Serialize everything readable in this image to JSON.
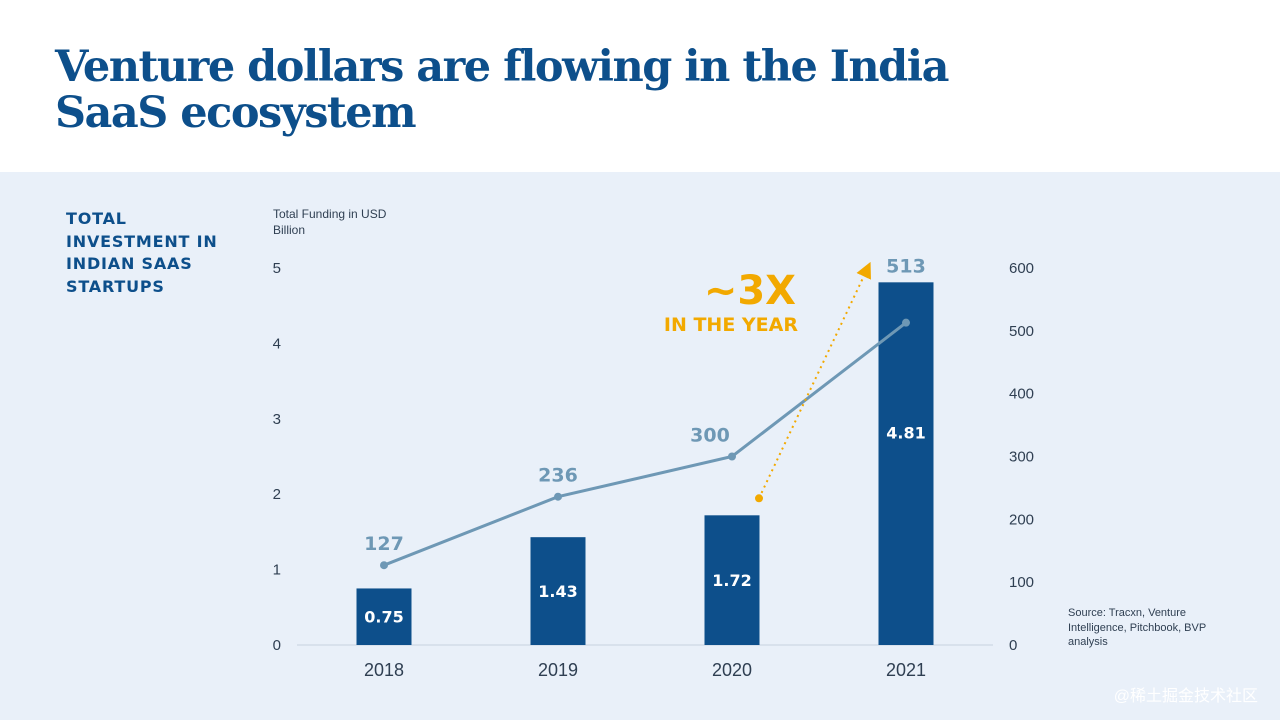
{
  "title": "Venture dollars are flowing in the India SaaS ecosystem",
  "side_label": "TOTAL INVESTMENT IN INDIAN SAAS STARTUPS",
  "source": "Source: Tracxn, Venture Intelligence, Pitchbook, BVP analysis",
  "watermark": "@稀土掘金技术社区",
  "colors": {
    "title": "#0d4f8b",
    "panel": "#e9f0f9",
    "bar": "#0d4f8b",
    "line": "#6e98b5",
    "annotation": "#f2a900",
    "text": "#2f3f52"
  },
  "chart_data": {
    "type": "bar+line",
    "categories": [
      "2018",
      "2019",
      "2020",
      "2021"
    ],
    "ylabel": "Total Funding in USD Billion",
    "ylim": [
      0,
      5
    ],
    "yticks": [
      0,
      1,
      2,
      3,
      4,
      5
    ],
    "y2lim": [
      0,
      600
    ],
    "y2ticks": [
      0,
      100,
      200,
      300,
      400,
      500,
      600
    ],
    "grid": false,
    "series": [
      {
        "type": "bar",
        "axis": "left",
        "values": [
          0.75,
          1.43,
          1.72,
          4.81
        ],
        "labels": [
          "0.75",
          "1.43",
          "1.72",
          "4.81"
        ]
      },
      {
        "type": "line",
        "axis": "right",
        "values": [
          127,
          236,
          300,
          513
        ],
        "labels": [
          "127",
          "236",
          "300",
          "513"
        ]
      }
    ],
    "annotation": {
      "text": "~3X",
      "subtext": "IN THE YEAR"
    }
  }
}
